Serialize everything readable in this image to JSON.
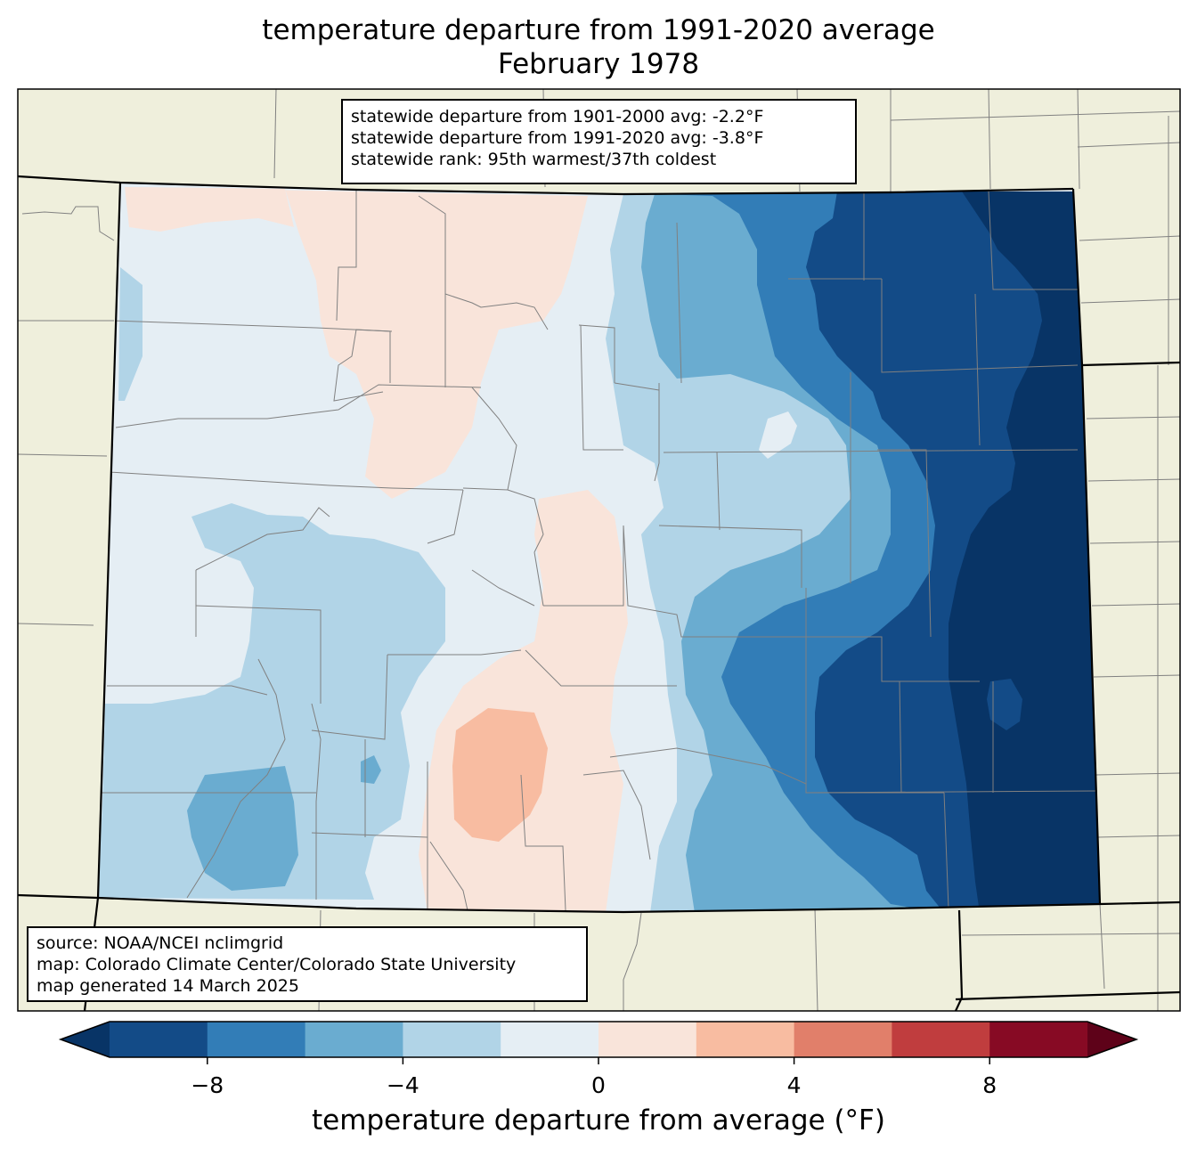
{
  "title": "temperature departure from 1991-2020 average",
  "subtitle": "February 1978",
  "stats": [
    "statewide departure from 1901-2000 avg: -2.2°F",
    "statewide departure from 1991-2020 avg: -3.8°F",
    "statewide rank: 95th warmest/37th coldest"
  ],
  "source": [
    "source: NOAA/NCEI nclimgrid",
    "map: Colorado Climate Center/Colorado State University",
    "map generated 14 March 2025"
  ],
  "colorbar": {
    "label": "temperature departure from average (°F)",
    "ticks": [
      "−8",
      "−4",
      "0",
      "4",
      "8"
    ],
    "tick_values": [
      -8,
      -4,
      0,
      4,
      8
    ],
    "min": -10,
    "max": 10,
    "step": 2,
    "colors": [
      "#134b87",
      "#327db7",
      "#6aacd0",
      "#b1d4e7",
      "#e5eef4",
      "#f9e4da",
      "#f8bca1",
      "#e17f6a",
      "#c03d3e",
      "#870a24"
    ],
    "extend_low_color": "#083466",
    "extend_high_color": "#5e0219"
  },
  "map_colors": {
    "land": "#efefdc",
    "state_border": "#000000",
    "county_border": "#808080"
  }
}
